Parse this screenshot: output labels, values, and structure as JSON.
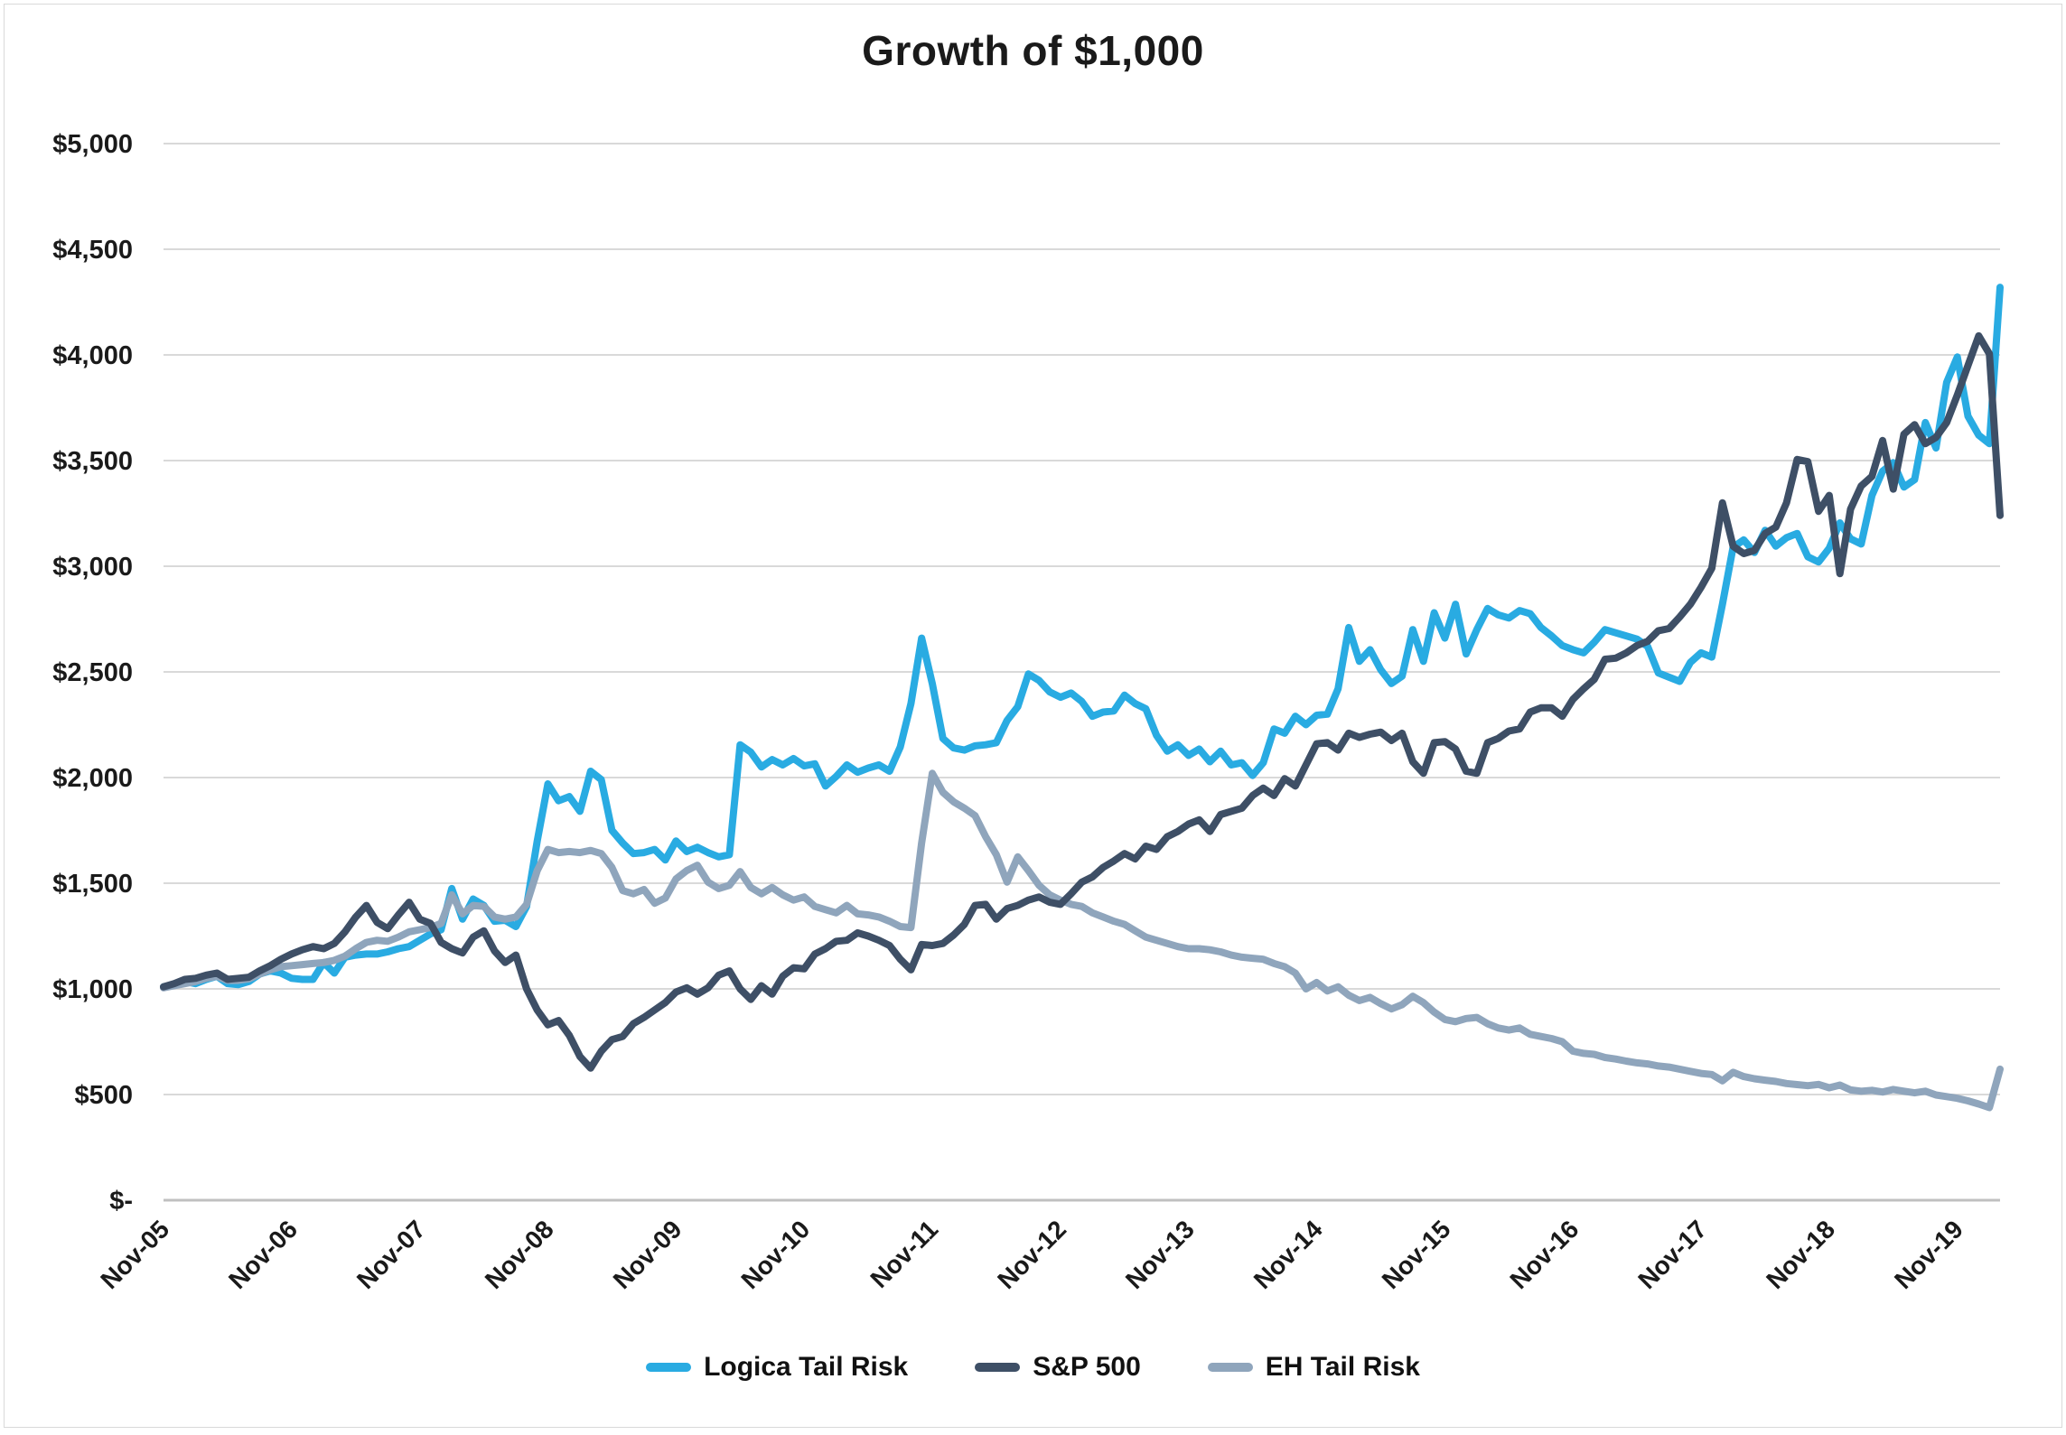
{
  "title": "Growth of $1,000",
  "y_axis": {
    "labels": [
      "$-",
      "$500",
      "$1,000",
      "$1,500",
      "$2,000",
      "$2,500",
      "$3,000",
      "$3,500",
      "$4,000",
      "$4,500",
      "$5,000"
    ],
    "values": [
      0,
      500,
      1000,
      1500,
      2000,
      2500,
      3000,
      3500,
      4000,
      4500,
      5000
    ]
  },
  "x_axis": {
    "tick_labels": [
      "Nov-05",
      "Nov-06",
      "Nov-07",
      "Nov-08",
      "Nov-09",
      "Nov-10",
      "Nov-11",
      "Nov-12",
      "Nov-13",
      "Nov-14",
      "Nov-15",
      "Nov-16",
      "Nov-17",
      "Nov-18",
      "Nov-19"
    ]
  },
  "legend": {
    "items": [
      {
        "label": "Logica Tail Risk",
        "color": "#29ABE2"
      },
      {
        "label": "S&P 500",
        "color": "#3E4F66"
      },
      {
        "label": "EH Tail Risk",
        "color": "#8FA5BC"
      }
    ]
  },
  "colors": {
    "gridline": "#d9d9d9",
    "axis_line": "#c0c0c0",
    "label_text": "#1a1a1a"
  },
  "chart_data": {
    "type": "line",
    "title": "Growth of $1,000",
    "x_start": "Nov-2005",
    "x_end": "Mar-2020",
    "x_frequency": "monthly",
    "ylim": [
      0,
      5000
    ],
    "y_tick_step": 500,
    "grid": "horizontal",
    "legend_position": "bottom",
    "x_tick_every_months": 12,
    "series": [
      {
        "name": "Logica Tail Risk",
        "color": "#29ABE2",
        "values": [
          1010,
          1020,
          1035,
          1025,
          1045,
          1060,
          1025,
          1020,
          1035,
          1070,
          1085,
          1075,
          1050,
          1045,
          1045,
          1125,
          1075,
          1150,
          1160,
          1165,
          1165,
          1175,
          1190,
          1200,
          1230,
          1260,
          1280,
          1475,
          1330,
          1425,
          1395,
          1320,
          1325,
          1295,
          1390,
          1700,
          1970,
          1890,
          1910,
          1840,
          2030,
          1990,
          1750,
          1690,
          1640,
          1645,
          1660,
          1610,
          1700,
          1650,
          1670,
          1645,
          1625,
          1635,
          2155,
          2120,
          2050,
          2085,
          2060,
          2090,
          2055,
          2065,
          1960,
          2005,
          2060,
          2025,
          2045,
          2060,
          2030,
          2145,
          2350,
          2660,
          2445,
          2185,
          2140,
          2130,
          2150,
          2155,
          2165,
          2270,
          2335,
          2490,
          2460,
          2405,
          2380,
          2400,
          2360,
          2290,
          2310,
          2315,
          2390,
          2350,
          2325,
          2200,
          2125,
          2155,
          2105,
          2135,
          2075,
          2125,
          2060,
          2070,
          2010,
          2070,
          2230,
          2210,
          2290,
          2250,
          2295,
          2300,
          2420,
          2710,
          2550,
          2605,
          2510,
          2445,
          2480,
          2700,
          2550,
          2780,
          2660,
          2820,
          2585,
          2700,
          2800,
          2770,
          2755,
          2790,
          2775,
          2710,
          2670,
          2625,
          2605,
          2590,
          2640,
          2700,
          2685,
          2670,
          2655,
          2620,
          2495,
          2475,
          2455,
          2545,
          2590,
          2570,
          2820,
          3090,
          3125,
          3065,
          3170,
          3095,
          3135,
          3155,
          3045,
          3020,
          3085,
          3205,
          3130,
          3105,
          3335,
          3450,
          3490,
          3375,
          3410,
          3680,
          3560,
          3870,
          3990,
          3710,
          3620,
          3580,
          4320
        ]
      },
      {
        "name": "S&P 500",
        "color": "#3E4F66",
        "values": [
          1010,
          1025,
          1045,
          1050,
          1065,
          1075,
          1045,
          1050,
          1055,
          1085,
          1110,
          1140,
          1165,
          1185,
          1200,
          1190,
          1215,
          1270,
          1340,
          1395,
          1315,
          1285,
          1350,
          1410,
          1330,
          1310,
          1220,
          1190,
          1170,
          1245,
          1275,
          1180,
          1125,
          1160,
          1000,
          900,
          830,
          850,
          780,
          680,
          625,
          705,
          760,
          775,
          835,
          865,
          900,
          935,
          985,
          1005,
          975,
          1005,
          1065,
          1085,
          1000,
          950,
          1015,
          975,
          1060,
          1100,
          1095,
          1165,
          1190,
          1225,
          1230,
          1265,
          1250,
          1230,
          1205,
          1140,
          1090,
          1210,
          1205,
          1215,
          1255,
          1305,
          1395,
          1400,
          1330,
          1380,
          1395,
          1420,
          1435,
          1410,
          1400,
          1450,
          1505,
          1530,
          1575,
          1605,
          1640,
          1615,
          1675,
          1660,
          1720,
          1745,
          1780,
          1800,
          1745,
          1825,
          1840,
          1855,
          1915,
          1950,
          1915,
          1995,
          1960,
          2060,
          2160,
          2165,
          2130,
          2210,
          2190,
          2205,
          2215,
          2175,
          2210,
          2075,
          2020,
          2165,
          2170,
          2135,
          2030,
          2020,
          2165,
          2185,
          2220,
          2230,
          2310,
          2330,
          2330,
          2290,
          2370,
          2420,
          2465,
          2560,
          2565,
          2590,
          2625,
          2645,
          2695,
          2705,
          2760,
          2820,
          2900,
          2990,
          3300,
          3095,
          3060,
          3075,
          3155,
          3185,
          3300,
          3505,
          3495,
          3260,
          3335,
          2965,
          3270,
          3380,
          3425,
          3595,
          3365,
          3625,
          3670,
          3580,
          3610,
          3680,
          3810,
          3950,
          4090,
          4005,
          3240
        ]
      },
      {
        "name": "EH Tail Risk",
        "color": "#8FA5BC",
        "values": [
          1005,
          1015,
          1025,
          1035,
          1050,
          1060,
          1040,
          1040,
          1048,
          1070,
          1090,
          1105,
          1110,
          1115,
          1120,
          1125,
          1135,
          1155,
          1190,
          1220,
          1230,
          1225,
          1245,
          1270,
          1280,
          1290,
          1310,
          1445,
          1355,
          1395,
          1390,
          1340,
          1330,
          1340,
          1400,
          1560,
          1660,
          1645,
          1650,
          1645,
          1655,
          1640,
          1575,
          1465,
          1450,
          1470,
          1405,
          1430,
          1520,
          1560,
          1585,
          1505,
          1475,
          1490,
          1555,
          1480,
          1450,
          1480,
          1445,
          1420,
          1435,
          1390,
          1375,
          1360,
          1395,
          1355,
          1350,
          1340,
          1320,
          1295,
          1290,
          1690,
          2020,
          1930,
          1885,
          1855,
          1820,
          1720,
          1635,
          1505,
          1625,
          1560,
          1490,
          1445,
          1420,
          1400,
          1390,
          1360,
          1340,
          1320,
          1305,
          1275,
          1245,
          1230,
          1215,
          1200,
          1190,
          1190,
          1185,
          1175,
          1160,
          1150,
          1145,
          1140,
          1120,
          1105,
          1075,
          1000,
          1030,
          990,
          1010,
          970,
          945,
          960,
          930,
          905,
          925,
          965,
          935,
          890,
          855,
          845,
          860,
          865,
          835,
          815,
          805,
          815,
          785,
          775,
          765,
          750,
          705,
          695,
          690,
          675,
          668,
          658,
          650,
          645,
          635,
          630,
          620,
          610,
          600,
          595,
          565,
          605,
          585,
          575,
          568,
          562,
          552,
          547,
          542,
          548,
          532,
          545,
          522,
          516,
          520,
          512,
          524,
          516,
          508,
          516,
          498,
          490,
          482,
          470,
          455,
          438,
          620
        ]
      }
    ],
    "draw_order": [
      0,
      2,
      1
    ]
  }
}
